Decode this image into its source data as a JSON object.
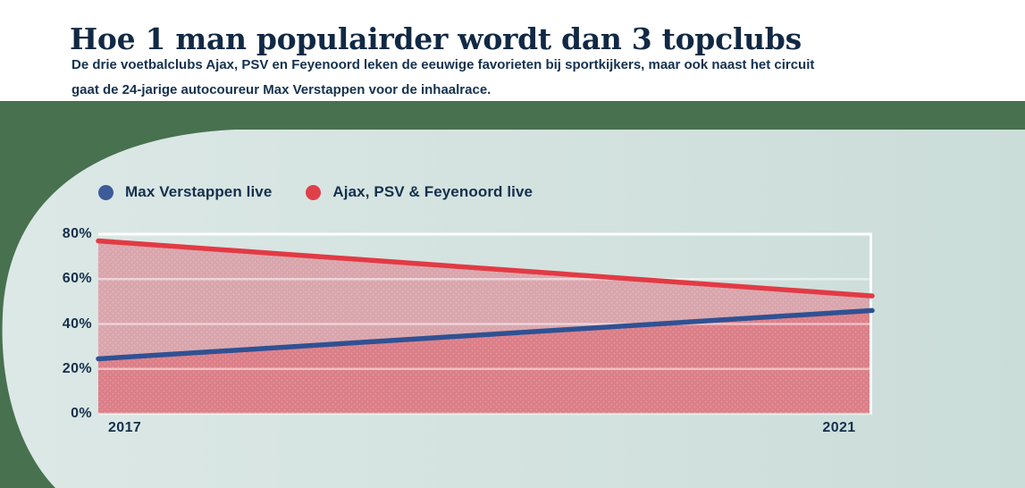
{
  "page": {
    "title": "Hoe 1 man populairder wordt dan 3 topclubs",
    "subtitle_lines": [
      "De drie voetbalclubs Ajax, PSV en Feyenoord leken de eeuwige favorieten bij sportkijkers, maar ook naast het circuit",
      "gaat de 24-jarige autocoureur Max Verstappen voor de inhaalrace."
    ]
  },
  "colors": {
    "page_bg": "#ffffff",
    "band_green": "#48714f",
    "panel_mint_left": "#dce8e6",
    "panel_mint_right": "#cbddd9",
    "heading_navy": "#112944",
    "text_navy": "#15314f",
    "grid_white": "#ffffff"
  },
  "chart_data": {
    "type": "area",
    "title": "Hoe 1 man populairder wordt dan 3 topclubs",
    "x": [
      "2017",
      "2021"
    ],
    "series": [
      {
        "name": "Max Verstappen live",
        "color": "#2f5193",
        "dot_color": "#3d5b99",
        "area_fill": "#dc7e87",
        "values": [
          24.5,
          46
        ]
      },
      {
        "name": "Ajax, PSV & Feyenoord live",
        "color": "#e23a44",
        "dot_color": "#e0404a",
        "area_fill": "#d9a5ac",
        "values": [
          77,
          52.5
        ]
      }
    ],
    "ylim": [
      0,
      80
    ],
    "yticks": [
      0,
      20,
      40,
      60,
      80
    ],
    "ytick_suffix": "%",
    "xlabel": "",
    "ylabel": "",
    "grid": "horizontal-white-lines",
    "legend_position": "top-left"
  }
}
